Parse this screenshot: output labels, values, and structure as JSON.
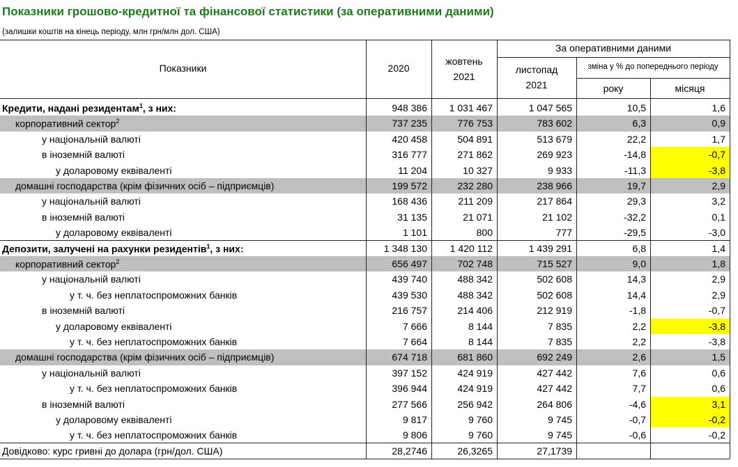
{
  "header": {
    "title": "Показники грошово-кредитної та фінансової статистики (за оперативними даними)",
    "subtitle": "(залишки коштів на кінець періоду, млн грн/млн дол. США)"
  },
  "columns": {
    "indicator": "Показники",
    "c2020": "2020",
    "oct": [
      "жовтень",
      "2021"
    ],
    "operative": "За оперативними даними",
    "nov": [
      "листопад",
      "2021"
    ],
    "change": "зміна у % до попереднього періоду",
    "year": "року",
    "month": "місяця"
  },
  "table": {
    "rows": [
      {
        "label": "Кредити, надані резидентам",
        "sup": "1",
        "suffix": ", з них:",
        "values": [
          "948 386",
          "1 031 467",
          "1 047 565",
          "10,5",
          "1,6"
        ]
      },
      {
        "label": "корпоративний сектор",
        "sup": "2",
        "values": [
          "737 235",
          "776 753",
          "783 602",
          "6,3",
          "0,9"
        ]
      },
      {
        "label": "у національній валюті",
        "values": [
          "420 458",
          "504 891",
          "513 679",
          "22,2",
          "1,7"
        ]
      },
      {
        "label": "в іноземній валюті",
        "values": [
          "316 777",
          "271 862",
          "269 923",
          "-14,8",
          "-0,7"
        ]
      },
      {
        "label": "у доларовому еквіваленті",
        "values": [
          "11 204",
          "10 327",
          "9 933",
          "-11,3",
          "-3,8"
        ]
      },
      {
        "label": "домашні господарства (крім фізичних осіб – підприємців)",
        "values": [
          "199 572",
          "232 280",
          "238 966",
          "19,7",
          "2,9"
        ]
      },
      {
        "label": "у національній валюті",
        "values": [
          "168 436",
          "211 209",
          "217 864",
          "29,3",
          "3,2"
        ]
      },
      {
        "label": "в іноземній валюті",
        "values": [
          "31 135",
          "21 071",
          "21 102",
          "-32,2",
          "0,1"
        ]
      },
      {
        "label": "у доларовому еквіваленті",
        "values": [
          "1 101",
          "800",
          "777",
          "-29,5",
          "-3,0"
        ]
      },
      {
        "label": "Депозити, залучені на рахунки резидентів",
        "sup": "1",
        "suffix": ", з них:",
        "values": [
          "1 348 130",
          "1 420 112",
          "1 439 291",
          "6,8",
          "1,4"
        ]
      },
      {
        "label": "корпоративний сектор",
        "sup": "2",
        "values": [
          "656 497",
          "702 748",
          "715 527",
          "9,0",
          "1,8"
        ]
      },
      {
        "label": "у національній валюті",
        "values": [
          "439 740",
          "488 342",
          "502 608",
          "14,3",
          "2,9"
        ]
      },
      {
        "label": "у т. ч. без неплатоспроможних банків",
        "values": [
          "439 530",
          "488 342",
          "502 608",
          "14,4",
          "2,9"
        ]
      },
      {
        "label": "в іноземній валюті",
        "values": [
          "216 757",
          "214 406",
          "212 919",
          "-1,8",
          "-0,7"
        ]
      },
      {
        "label": "у доларовому еквіваленті",
        "values": [
          "7 666",
          "8 144",
          "7 835",
          "2,2",
          "-3,8"
        ]
      },
      {
        "label": "у т. ч. без неплатоспроможних банків",
        "values": [
          "7 664",
          "8 144",
          "7 835",
          "2,2",
          "-3,8"
        ]
      },
      {
        "label": "домашні господарства (крім фізичних осіб – підприємців)",
        "values": [
          "674 718",
          "681 860",
          "692 249",
          "2,6",
          "1,5"
        ]
      },
      {
        "label": "у національній валюті",
        "values": [
          "397 152",
          "424 919",
          "427 442",
          "7,6",
          "0,6"
        ]
      },
      {
        "label": "у т. ч. без неплатоспроможних банків",
        "values": [
          "396 944",
          "424 919",
          "427 442",
          "7,7",
          "0,6"
        ]
      },
      {
        "label": "в іноземній валюті",
        "values": [
          "277 566",
          "256 942",
          "264 806",
          "-4,6",
          "3,1"
        ]
      },
      {
        "label": "у доларовому еквіваленті",
        "values": [
          "9 817",
          "9 760",
          "9 745",
          "-0,7",
          "-0,2"
        ]
      },
      {
        "label": "у т. ч. без неплатоспроможних банків",
        "values": [
          "9 806",
          "9 760",
          "9 745",
          "-0,6",
          "-0,2"
        ]
      },
      {
        "label": "Довідково: курс гривні до долара (грн/дол. США)",
        "values": [
          "28,2746",
          "26,3265",
          "27,1739"
        ]
      }
    ]
  }
}
